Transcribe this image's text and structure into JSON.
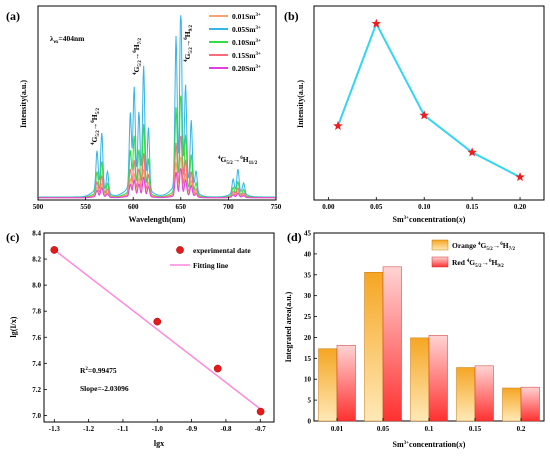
{
  "colors": {
    "series_a": [
      "#f5a56e",
      "#33b5e5",
      "#33dd44",
      "#ff6b7a",
      "#e040e0"
    ],
    "series_b_line": "#33d6ee",
    "series_b_marker": "#ee1c1c",
    "fit_line": "#ff88dd",
    "exp_marker": "#e41a1c",
    "bar_orange": "#f5a623",
    "bar_red": "#ff4b4b"
  },
  "chart_data": [
    {
      "panel": "(a)",
      "type": "line",
      "xlabel": "Wavelength(nm)",
      "ylabel": "Intensity(a.u.)",
      "xlim": [
        500,
        750
      ],
      "xticks": [
        "500",
        "550",
        "600",
        "650",
        "700",
        "750"
      ],
      "excitation_label": "λex=404nm",
      "legend_placement": "top-right",
      "peaks_nm": [
        [
          562,
          0.22
        ],
        [
          567,
          0.32
        ],
        [
          573,
          0.12
        ],
        [
          597,
          0.42
        ],
        [
          601,
          0.55
        ],
        [
          606,
          0.4
        ],
        [
          611,
          0.68
        ],
        [
          616,
          0.35
        ],
        [
          645,
          0.85
        ],
        [
          650,
          1.0
        ],
        [
          655,
          0.55
        ],
        [
          661,
          0.38
        ],
        [
          666,
          0.12
        ],
        [
          705,
          0.08
        ],
        [
          710,
          0.13
        ],
        [
          716,
          0.06
        ]
      ],
      "series": [
        {
          "name": "0.01Sm3+",
          "label_main": "0.01Sm",
          "label_sup": "3+",
          "scale": 0.22
        },
        {
          "name": "0.05Sm3+",
          "label_main": "0.05Sm",
          "label_sup": "3+",
          "scale": 1.0
        },
        {
          "name": "0.10Sm3+",
          "label_main": "0.10Sm",
          "label_sup": "3+",
          "scale": 0.56
        },
        {
          "name": "0.15Sm3+",
          "label_main": "0.15Sm",
          "label_sup": "3+",
          "scale": 0.34
        },
        {
          "name": "0.20Sm3+",
          "label_main": "0.20Sm",
          "label_sup": "3+",
          "scale": 0.16
        }
      ],
      "annotations": [
        {
          "text": "4G5/2→6H5/2",
          "at_nm": 566
        },
        {
          "text": "4G5/2→6H7/2",
          "at_nm": 604
        },
        {
          "text": "4G5/2→6H9/2",
          "at_nm": 650
        },
        {
          "text": "4G5/2→6H11/2",
          "at_nm": 710
        }
      ]
    },
    {
      "panel": "(b)",
      "type": "line",
      "xlabel": "Sm3+concentration(x)",
      "ylabel": "Intensity(a.u.)",
      "x": [
        0.01,
        0.05,
        0.1,
        0.15,
        0.2
      ],
      "y": [
        0.42,
        1.0,
        0.48,
        0.27,
        0.13
      ],
      "xlim": [
        -0.015,
        0.225
      ],
      "ylim": [
        0.0,
        1.1
      ],
      "xticks": [
        "0.00",
        "0.05",
        "0.10",
        "0.15",
        "0.20"
      ]
    },
    {
      "panel": "(c)",
      "type": "scatter",
      "xlabel": "lgx",
      "ylabel": "lg(I/x)",
      "x": [
        -1.3,
        -1.0,
        -0.824,
        -0.699
      ],
      "y": [
        8.27,
        7.72,
        7.36,
        7.03
      ],
      "fit_line": {
        "x0": -1.3,
        "y0": 8.27,
        "x1": -0.7,
        "y1": 7.05
      },
      "xlim": [
        -1.33,
        -0.66
      ],
      "ylim": [
        6.95,
        8.4
      ],
      "xticks": [
        "-1.3",
        "-1.2",
        "-1.1",
        "-1.0",
        "-0.9",
        "-0.8",
        "-0.7"
      ],
      "yticks": [
        "7.0",
        "7.2",
        "7.4",
        "7.6",
        "7.8",
        "8.0",
        "8.2",
        "8.4"
      ],
      "legend": [
        "experimental date",
        "Fitting line"
      ],
      "r2_label": "R2=0.99475",
      "slope_label": "Slope=-2.03096"
    },
    {
      "panel": "(d)",
      "type": "bar",
      "xlabel": "Sm3+concentration(x)",
      "ylabel": "Integrated area(a.u.)",
      "categories": [
        "0.01",
        "0.05",
        "0.1",
        "0.15",
        "0.2"
      ],
      "ylim": [
        0,
        45
      ],
      "yticks": [
        "0",
        "5",
        "10",
        "15",
        "20",
        "25",
        "30",
        "35",
        "40",
        "45"
      ],
      "series": [
        {
          "name": "Orange 4G5/2→6H7/2",
          "values": [
            17.3,
            35.6,
            19.9,
            12.8,
            7.9
          ]
        },
        {
          "name": "Red 4G5/2→6H9/2",
          "values": [
            18.1,
            36.9,
            20.5,
            13.2,
            8.1
          ]
        }
      ],
      "legend_placement": "top-right"
    }
  ]
}
